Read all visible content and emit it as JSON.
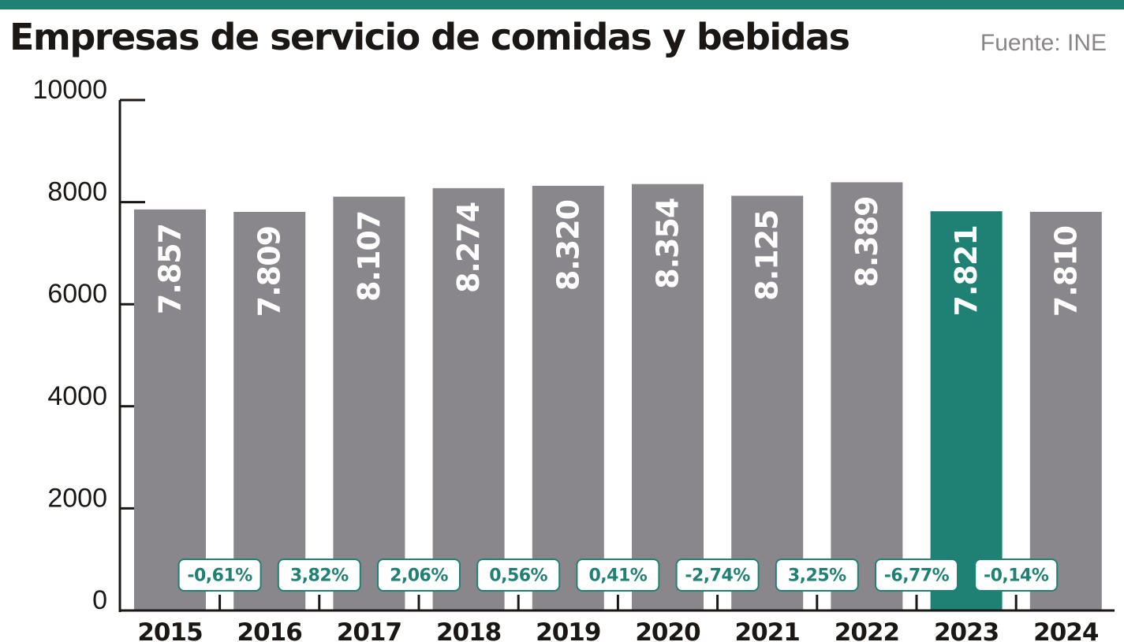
{
  "header": {
    "title": "Empresas de servicio de comidas y bebidas",
    "source": "Fuente: INE"
  },
  "colors": {
    "accent": "#1e8173",
    "bar": "#8a878c",
    "axis": "#1a1714"
  },
  "chart_data": {
    "type": "bar",
    "title": "Empresas de servicio de comidas y bebidas",
    "xlabel": "",
    "ylabel": "",
    "ylim": [
      0,
      10000
    ],
    "yticks": [
      0,
      2000,
      4000,
      6000,
      8000,
      10000
    ],
    "ytick_labels": [
      "0",
      "2000",
      "4000",
      "6000",
      "8000",
      "10000"
    ],
    "categories": [
      "2015",
      "2016",
      "2017",
      "2018",
      "2019",
      "2020",
      "2021",
      "2022",
      "2023",
      "2024"
    ],
    "values": [
      7857,
      7809,
      8107,
      8274,
      8320,
      8354,
      8125,
      8389,
      7821,
      7810
    ],
    "value_labels": [
      "7.857",
      "7.809",
      "8.107",
      "8.274",
      "8.320",
      "8.354",
      "8.125",
      "8.389",
      "7.821",
      "7.810"
    ],
    "highlight_category": "2023",
    "changes": [
      "-0,61%",
      "3,82%",
      "2,06%",
      "0,56%",
      "0,41%",
      "-2,74%",
      "3,25%",
      "-6,77%",
      "-0,14%"
    ],
    "grid": false,
    "legend": "none"
  }
}
